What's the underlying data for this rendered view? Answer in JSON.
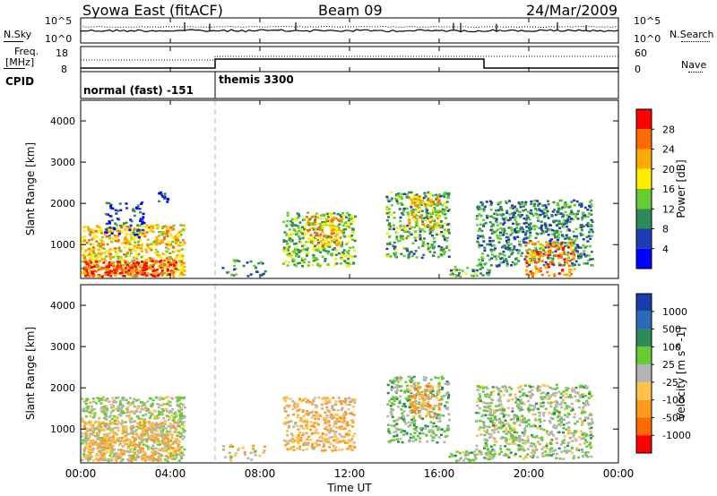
{
  "header": {
    "title": "Syowa East (fitACF)",
    "beam": "Beam 09",
    "date": "24/Mar/2009"
  },
  "nsky_panel": {
    "left_label": "N.Sky",
    "right_label": "N.Search",
    "left_ticks": [
      "10^5",
      "10^0"
    ],
    "right_ticks": [
      "10^5",
      "10^0"
    ]
  },
  "freq_panel": {
    "left_label_1": "Freq.",
    "left_label_2": "[MHz]",
    "left_ticks": [
      "18",
      "8"
    ],
    "right_label": "Nave",
    "right_ticks": [
      "60",
      "0"
    ]
  },
  "cpid_panel": {
    "label": "CPID",
    "modes": [
      {
        "name": "normal (fast) -151",
        "start_hour": 0,
        "end_hour": 6
      },
      {
        "name": "themis 3300",
        "start_hour": 6,
        "end_hour": 24
      }
    ]
  },
  "x_axis": {
    "label": "Time UT",
    "ticks": [
      "00:00",
      "04:00",
      "08:00",
      "12:00",
      "16:00",
      "20:00",
      "00:00"
    ]
  },
  "colors": {
    "power_scale": [
      "#0000ff",
      "#1f3cb4",
      "#2e8b57",
      "#66cc33",
      "#ffee00",
      "#ffaa00",
      "#ff6a00",
      "#ff0000"
    ],
    "velocity_scale": [
      "#1a3caa",
      "#2a6ab8",
      "#2e8b57",
      "#66cc33",
      "#b3b3b3",
      "#ffc24d",
      "#ff9a1a",
      "#ff6a00",
      "#ff0000"
    ]
  },
  "chart_data": [
    {
      "type": "heatmap",
      "panel": "power",
      "ylabel": "Slant Range [km]",
      "xlabel": "Time UT",
      "xlim": [
        0,
        24
      ],
      "ylim": [
        180,
        4500
      ],
      "yticks": [
        "1000",
        "2000",
        "3000",
        "4000"
      ],
      "colorbar": {
        "label": "Power [dB]",
        "ticks": [
          "28",
          "24",
          "20",
          "16",
          "12",
          "8",
          "4"
        ],
        "range": [
          0,
          32
        ]
      },
      "regions": [
        {
          "t0": 0.0,
          "t1": 4.6,
          "r0": 250,
          "r1": 1500,
          "value": 20,
          "density": 0.9
        },
        {
          "t0": 0.1,
          "t1": 4.2,
          "r0": 250,
          "r1": 650,
          "value": 28,
          "density": 0.9
        },
        {
          "t0": 1.0,
          "t1": 2.8,
          "r0": 1200,
          "r1": 2050,
          "value": 6,
          "density": 0.35
        },
        {
          "t0": 3.4,
          "t1": 3.9,
          "r0": 2050,
          "r1": 2300,
          "value": 4,
          "density": 0.8
        },
        {
          "t0": 6.2,
          "t1": 8.2,
          "r0": 250,
          "r1": 650,
          "value": 10,
          "density": 0.3
        },
        {
          "t0": 9.0,
          "t1": 12.2,
          "r0": 500,
          "r1": 1800,
          "value": 14,
          "density": 0.7
        },
        {
          "t0": 10.0,
          "t1": 11.6,
          "r0": 1000,
          "r1": 1700,
          "value": 22,
          "density": 0.7
        },
        {
          "t0": 13.6,
          "t1": 16.4,
          "r0": 700,
          "r1": 2300,
          "value": 12,
          "density": 0.6
        },
        {
          "t0": 14.6,
          "t1": 16.0,
          "r0": 1400,
          "r1": 2200,
          "value": 20,
          "density": 0.7
        },
        {
          "t0": 16.4,
          "t1": 18.2,
          "r0": 250,
          "r1": 500,
          "value": 12,
          "density": 0.7
        },
        {
          "t0": 17.6,
          "t1": 22.8,
          "r0": 500,
          "r1": 2100,
          "value": 10,
          "density": 0.65
        },
        {
          "t0": 19.8,
          "t1": 22.0,
          "r0": 250,
          "r1": 1100,
          "value": 24,
          "density": 0.6
        }
      ]
    },
    {
      "type": "heatmap",
      "panel": "velocity",
      "ylabel": "Slant Range [km]",
      "xlabel": "Time UT",
      "xlim": [
        0,
        24
      ],
      "ylim": [
        180,
        4500
      ],
      "yticks": [
        "1000",
        "2000",
        "3000",
        "4000"
      ],
      "colorbar": {
        "label": "Velocity [m s^-1]",
        "ticks": [
          "1000",
          "500",
          "100",
          "25",
          "-25",
          "-100",
          "-500",
          "-1000"
        ],
        "range": [
          -1200,
          1200
        ]
      },
      "regions": [
        {
          "t0": 0.0,
          "t1": 4.6,
          "r0": 250,
          "r1": 1800,
          "value": 50,
          "density": 0.85
        },
        {
          "t0": 0.1,
          "t1": 4.4,
          "r0": 250,
          "r1": 1200,
          "value": -300,
          "density": 0.8
        },
        {
          "t0": 6.2,
          "t1": 8.2,
          "r0": 250,
          "r1": 650,
          "value": -200,
          "density": 0.3
        },
        {
          "t0": 9.0,
          "t1": 12.2,
          "r0": 500,
          "r1": 1800,
          "value": -300,
          "density": 0.75
        },
        {
          "t0": 13.6,
          "t1": 16.4,
          "r0": 700,
          "r1": 2300,
          "value": 200,
          "density": 0.6
        },
        {
          "t0": 14.6,
          "t1": 16.0,
          "r0": 1300,
          "r1": 2100,
          "value": -400,
          "density": 0.7
        },
        {
          "t0": 16.4,
          "t1": 18.2,
          "r0": 250,
          "r1": 500,
          "value": 150,
          "density": 0.7
        },
        {
          "t0": 17.6,
          "t1": 22.8,
          "r0": 300,
          "r1": 2100,
          "value": 120,
          "density": 0.65
        }
      ]
    }
  ]
}
